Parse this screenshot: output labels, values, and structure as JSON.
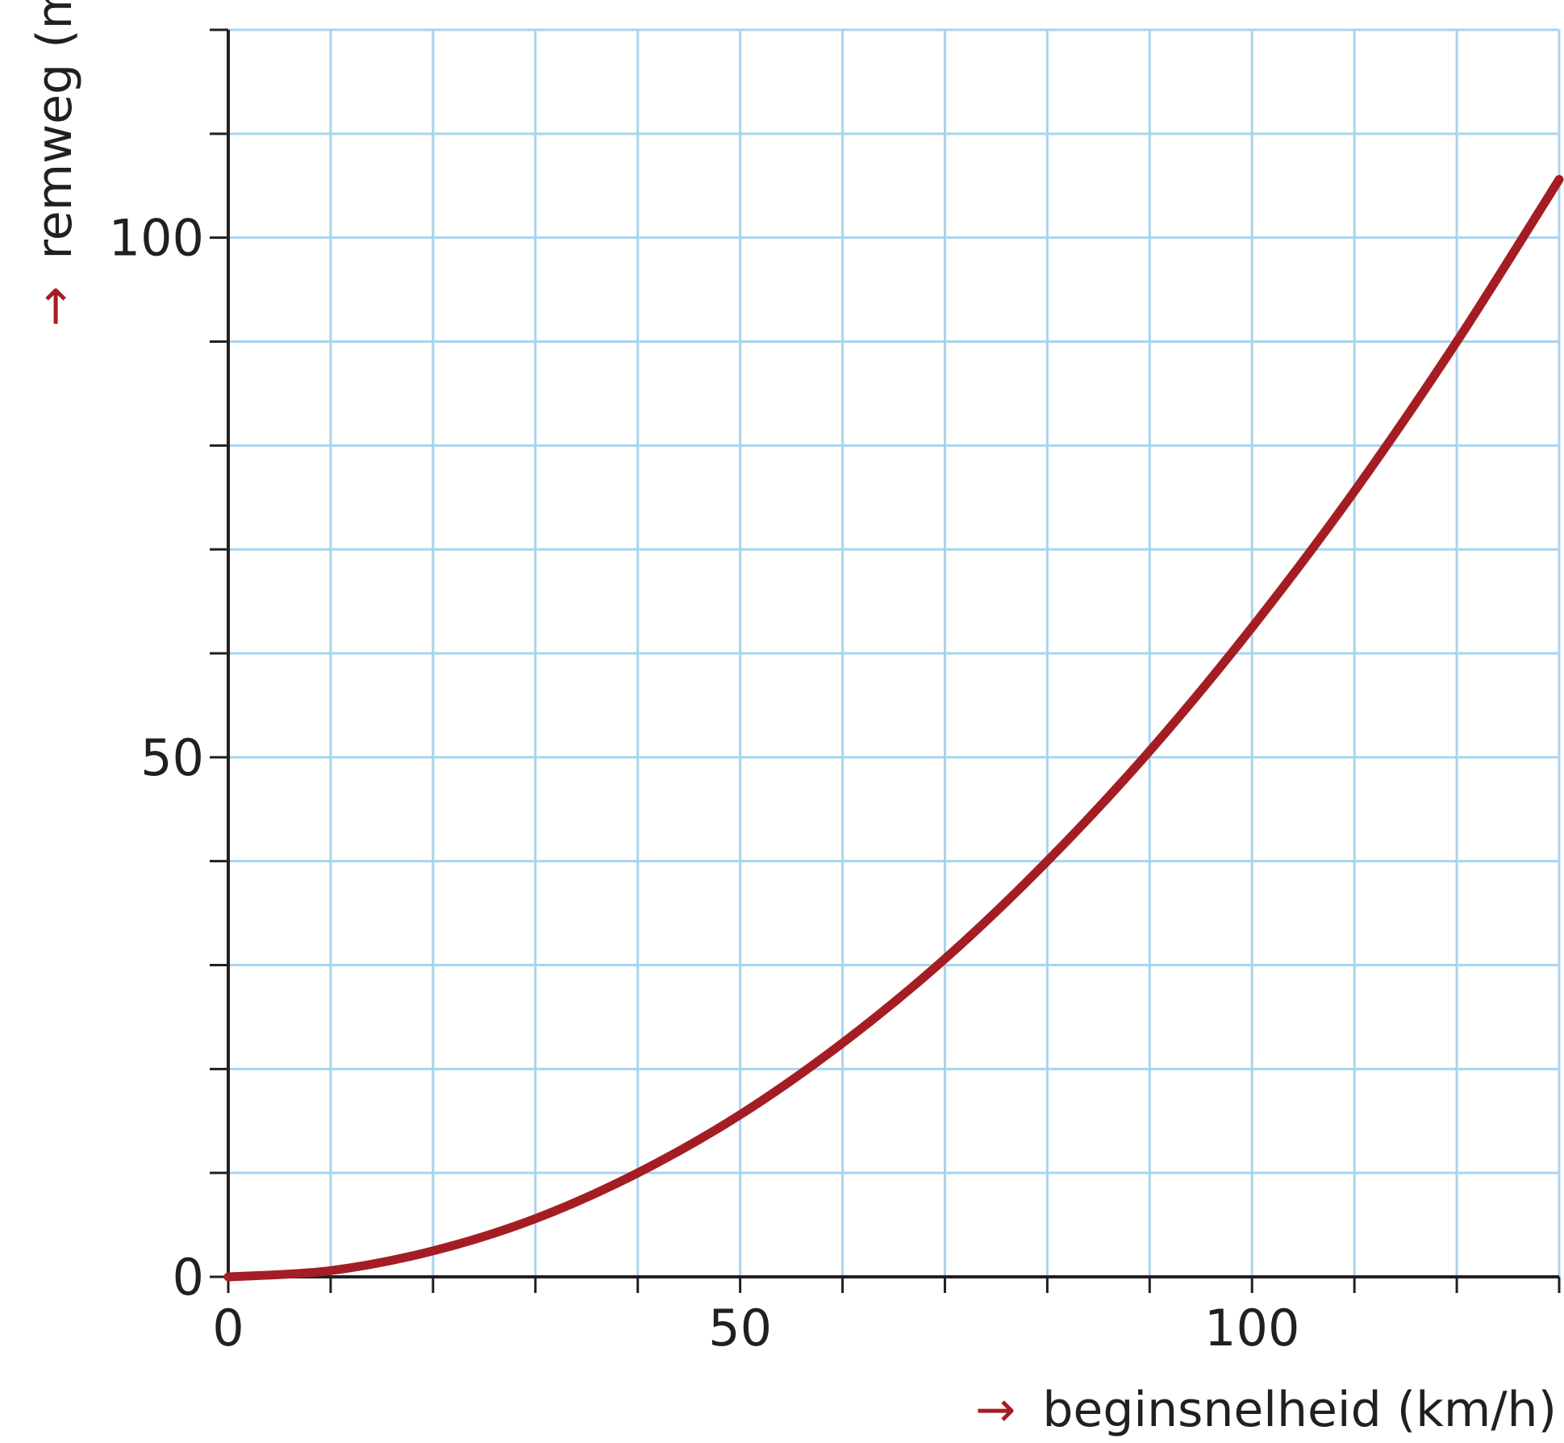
{
  "chart_data": {
    "type": "line",
    "xlabel": "beginsnelheid (km/h)",
    "ylabel": "remweg (m)",
    "axis_arrow": "→",
    "xlim": [
      0,
      130
    ],
    "ylim": [
      0,
      120
    ],
    "x_ticks": [
      0,
      50,
      100
    ],
    "y_ticks": [
      0,
      50,
      100
    ],
    "x_tick_labels": [
      "0",
      "50",
      "100"
    ],
    "y_tick_labels": [
      "0",
      "50",
      "100"
    ],
    "x_grid_step": 10,
    "y_grid_step": 10,
    "grid": true,
    "series": [
      {
        "x": [
          0,
          10,
          20,
          30,
          40,
          50,
          60,
          70,
          80,
          90,
          100,
          110,
          120,
          130
        ],
        "y": [
          0,
          0.6,
          2.5,
          5.6,
          10,
          15.6,
          22.5,
          30.6,
          40,
          50.6,
          62.5,
          75.6,
          90,
          105.6
        ]
      }
    ],
    "colors": {
      "curve": "#a51d24",
      "grid": "#a9d3ee",
      "axis": "#231f20",
      "arrow": "#a51d24"
    }
  }
}
